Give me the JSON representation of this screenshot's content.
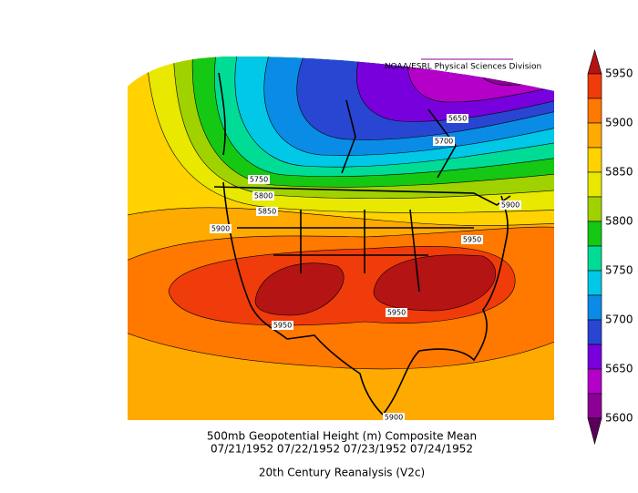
{
  "header": {
    "credit": "NOAA/ESRL Physical Sciences Division"
  },
  "contour_labels": [
    5650,
    5700,
    5750,
    5800,
    5850,
    5900,
    5900,
    5950,
    5950,
    5950,
    5900
  ],
  "colorbar": {
    "labels": [
      5950,
      5900,
      5850,
      5800,
      5750,
      5700,
      5650,
      5600
    ],
    "colors": [
      "#b41414",
      "#f03c0a",
      "#ff7800",
      "#ffaa00",
      "#ffd200",
      "#e8e800",
      "#a0d200",
      "#14c814",
      "#00dc96",
      "#00c8e6",
      "#0a8ce6",
      "#2846d2",
      "#7800dc",
      "#b400c8",
      "#8c0096",
      "#5a005a"
    ]
  },
  "caption": {
    "title": "500mb Geopotential Height (m) Composite Mean",
    "dates": "07/21/1952 07/22/1952 07/23/1952 07/24/1952",
    "source": "20th Century Reanalysis (V2c)"
  }
}
